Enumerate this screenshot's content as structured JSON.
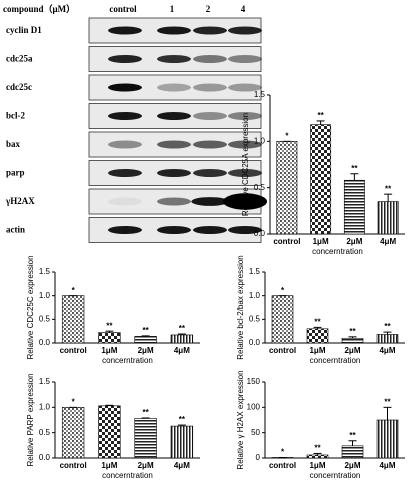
{
  "blot": {
    "header": "compound（μM）",
    "lanes": [
      "control",
      "1",
      "2",
      "4"
    ],
    "rows": [
      "cyclin D1",
      "cdc25a",
      "cdc25c",
      "bcl-2",
      "bax",
      "parp",
      "γH2AX",
      "actin"
    ]
  },
  "chart_data": [
    {
      "type": "bar",
      "ylabel": "Relative CDC25A expression",
      "xlabel": "concerntration",
      "categories": [
        "control",
        "1μM",
        "2μM",
        "4μM"
      ],
      "values": [
        1.0,
        1.18,
        0.58,
        0.35
      ],
      "errors": [
        0,
        0.04,
        0.07,
        0.08
      ],
      "annotations": [
        "*",
        "**",
        "**",
        "**"
      ],
      "color": "#000000",
      "ylim": [
        0,
        1.5
      ],
      "yticks": [
        {
          "value": 0,
          "label": "0.0"
        },
        0.5,
        {
          "value": 1,
          "label": "1.0"
        },
        1.5
      ]
    },
    {
      "type": "bar",
      "ylabel": "Relative CDC25C expression",
      "xlabel": "concerntration",
      "categories": [
        "control",
        "1μM",
        "2μM",
        "4μM"
      ],
      "values": [
        1.0,
        0.22,
        0.14,
        0.17
      ],
      "errors": [
        0,
        0.03,
        0.01,
        0.02
      ],
      "annotations": [
        "*",
        "**",
        "**",
        "**"
      ],
      "color": "#000000",
      "ylim": [
        0,
        1.5
      ],
      "yticks": [
        {
          "value": 0,
          "label": "0.0"
        },
        0.5,
        {
          "value": 1,
          "label": "1.0"
        },
        1.5
      ]
    },
    {
      "type": "bar",
      "ylabel": "Relative bcl-2/bax expression",
      "xlabel": "concerntration",
      "categories": [
        "control",
        "1μM",
        "2μM",
        "4μM"
      ],
      "values": [
        1.0,
        0.3,
        0.1,
        0.18
      ],
      "errors": [
        0,
        0.03,
        0.03,
        0.05
      ],
      "annotations": [
        "*",
        "**",
        "**",
        "**"
      ],
      "color": "#000000",
      "ylim": [
        0,
        1.5
      ],
      "yticks": [
        {
          "value": 0,
          "label": "0.0"
        },
        0.5,
        {
          "value": 1,
          "label": "1.0"
        },
        1.5
      ]
    },
    {
      "type": "bar",
      "ylabel": "Relative PARP expression",
      "xlabel": "concerntration",
      "categories": [
        "control",
        "1μM",
        "2μM",
        "4μM"
      ],
      "values": [
        1.0,
        1.03,
        0.78,
        0.63
      ],
      "errors": [
        0,
        0.01,
        0.01,
        0.02
      ],
      "annotations": [
        "*",
        "",
        "**",
        "**"
      ],
      "color": "#000000",
      "ylim": [
        0,
        1.5
      ],
      "yticks": [
        {
          "value": 0,
          "label": "0.0"
        },
        0.5,
        {
          "value": 1,
          "label": "1.0"
        },
        1.5
      ]
    },
    {
      "type": "bar",
      "ylabel": "Relative γ H2AX expression",
      "xlabel": "concerntration",
      "categories": [
        "control",
        "1μM",
        "2μM",
        "4μM"
      ],
      "values": [
        1,
        6,
        24,
        75
      ],
      "errors": [
        0,
        3,
        10,
        25
      ],
      "annotations": [
        "*",
        "**",
        "**",
        "**"
      ],
      "color": "#000000",
      "ylim": [
        0,
        150
      ],
      "yticks": [
        0,
        50,
        100,
        150
      ]
    }
  ]
}
